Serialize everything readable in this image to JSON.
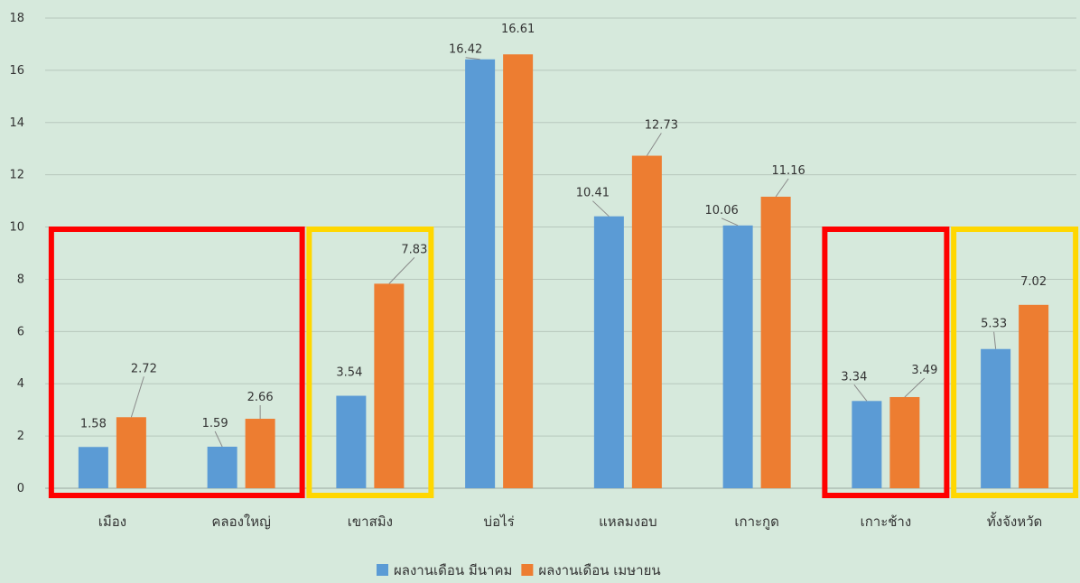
{
  "chart_data": {
    "type": "bar",
    "categories": [
      "เมือง",
      "คลองใหญ่",
      "เขาสมิง",
      "บ่อไร่",
      "แหลมงอบ",
      "เกาะกูด",
      "เกาะช้าง",
      "ทั้งจังหวัด"
    ],
    "series": [
      {
        "name": "ผลงานเดือน มีนาคม",
        "color": "#5b9bd5",
        "values": [
          1.58,
          1.59,
          3.54,
          16.42,
          10.41,
          10.06,
          3.34,
          5.33
        ],
        "labels": [
          "1.58",
          "1.59",
          "3.54",
          "16.42",
          "10.41",
          "10.06",
          "3.34",
          "5.33"
        ]
      },
      {
        "name": "ผลงานเดือน เมษายน",
        "color": "#ed7d31",
        "values": [
          2.72,
          2.66,
          7.83,
          16.61,
          12.73,
          11.16,
          3.49,
          7.02
        ],
        "labels": [
          "2.72",
          "2.66",
          "7.83",
          "16.61",
          "12.73",
          "11.16",
          "3.49",
          "7.02"
        ]
      }
    ],
    "ylim": [
      0,
      18
    ],
    "yticks": [
      "0",
      "2",
      "4",
      "6",
      "8",
      "10",
      "12",
      "14",
      "16",
      "18"
    ],
    "grid": true,
    "legend": "bottom",
    "highlight_boxes": [
      {
        "categories": [
          "เมือง",
          "คลองใหญ่"
        ],
        "color": "#ff0000"
      },
      {
        "categories": [
          "เขาสมิง"
        ],
        "color": "#ffd700"
      },
      {
        "categories": [
          "เกาะช้าง"
        ],
        "color": "#ff0000"
      },
      {
        "categories": [
          "ทั้งจังหวัด"
        ],
        "color": "#ffd700"
      }
    ]
  }
}
